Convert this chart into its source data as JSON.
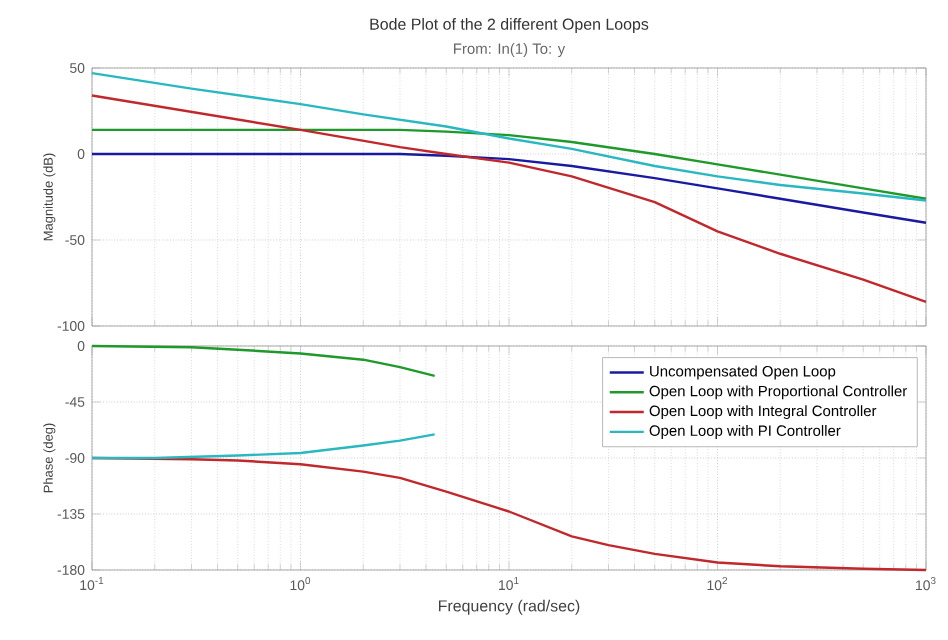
{
  "chart_data": [
    {
      "type": "line",
      "title": "Bode Plot of the 2 different Open Loops",
      "subtitle": "From: In(1)  To: y",
      "ylabel": "Magnitude (dB)",
      "log": "x",
      "xlim": [
        0.1,
        1000
      ],
      "xticks": [
        {
          "value": 0.1,
          "label": null
        },
        {
          "value": 1,
          "label": null
        },
        {
          "value": 10,
          "label": null
        },
        {
          "value": 100,
          "label": null
        },
        {
          "value": 1000,
          "label": null
        }
      ],
      "ylim": [
        -100,
        50
      ],
      "yticks": [
        -100,
        -50,
        0,
        50
      ],
      "tick_labels": "y",
      "grid": true,
      "series": [
        {
          "color": "#1a1aa0",
          "x": [
            0.1,
            1,
            3,
            5,
            10,
            20,
            50,
            100,
            200,
            500,
            1000
          ],
          "values": [
            0,
            0,
            0,
            -1,
            -3,
            -7,
            -14,
            -20,
            -26,
            -34,
            -40
          ]
        },
        {
          "color": "#1f9a2a",
          "x": [
            0.1,
            1,
            3,
            5,
            10,
            20,
            50,
            100,
            200,
            500,
            1000
          ],
          "values": [
            14,
            14,
            14,
            13,
            11,
            7,
            0,
            -6,
            -12,
            -20,
            -26
          ]
        },
        {
          "color": "#c0282c",
          "x": [
            0.1,
            1,
            3,
            5,
            10,
            20,
            50,
            100,
            200,
            500,
            1000
          ],
          "values": [
            34,
            14,
            4,
            0,
            -5,
            -13,
            -28,
            -45,
            -58,
            -73,
            -86
          ]
        },
        {
          "color": "#2ab8c0",
          "x": [
            0.1,
            0.3,
            1,
            2,
            5,
            10,
            20,
            50,
            100,
            200,
            500,
            1000
          ],
          "values": [
            47,
            38,
            29,
            23,
            16,
            9,
            3,
            -7,
            -13,
            -18,
            -23,
            -27
          ]
        }
      ]
    },
    {
      "type": "line",
      "xlabel": "Frequency  (rad/sec)",
      "ylabel": "Phase (deg)",
      "log": "x",
      "xlim": [
        0.1,
        1000
      ],
      "xticks": [
        {
          "value": 0.1,
          "label": "10$^{-1}$"
        },
        {
          "value": 1,
          "label": "10$^{0}$"
        },
        {
          "value": 10,
          "label": "10$^{1}$"
        },
        {
          "value": 100,
          "label": "10$^{2}$"
        },
        {
          "value": 1000,
          "label": "10$^{3}$"
        }
      ],
      "ylim": [
        -180,
        0
      ],
      "yticks": [
        -180,
        -135,
        -90,
        -45,
        0
      ],
      "grid": true,
      "legend": "top right",
      "series": [
        {
          "name": "Uncompensated Open Loop",
          "color": "#1a1aa0"
        },
        {
          "name": "Open Loop with Proportional Controller",
          "color": "#1f9a2a",
          "x": [
            0.1,
            0.3,
            0.5,
            1,
            2,
            3,
            4.4
          ],
          "values": [
            0,
            -1,
            -3,
            -6,
            -11,
            -17,
            -24
          ]
        },
        {
          "name": "Open Loop with Integral Controller",
          "color": "#c0282c",
          "x": [
            0.1,
            0.3,
            0.5,
            1,
            2,
            3,
            5,
            10,
            20,
            30,
            50,
            100,
            200,
            500,
            1000
          ],
          "values": [
            -90,
            -91,
            -92,
            -95,
            -101,
            -106,
            -117,
            -133,
            -153,
            -160,
            -167,
            -174,
            -177,
            -179,
            -180
          ]
        },
        {
          "name": "Open Loop with PI Controller",
          "color": "#2ab8c0",
          "x": [
            0.1,
            0.2,
            0.5,
            1,
            2,
            3,
            4.4
          ],
          "values": [
            -90,
            -90,
            -88,
            -86,
            -80,
            -76,
            -71
          ]
        }
      ]
    }
  ]
}
